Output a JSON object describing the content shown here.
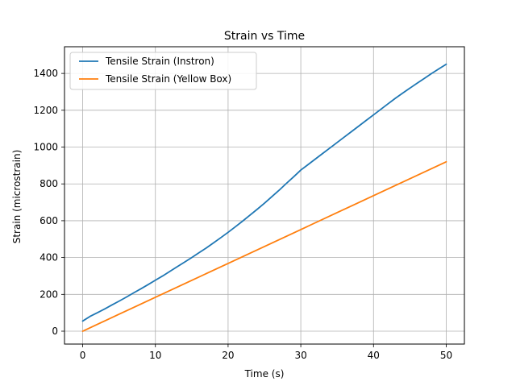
{
  "chart_data": {
    "type": "line",
    "title": "Strain vs Time",
    "xlabel": "Time (s)",
    "ylabel": "Strain (microstrain)",
    "xlim": [
      -2.5,
      52.5
    ],
    "ylim": [
      -70,
      1545
    ],
    "xticks": [
      0,
      10,
      20,
      30,
      40,
      50
    ],
    "yticks": [
      0,
      200,
      400,
      600,
      800,
      1000,
      1200,
      1400
    ],
    "grid": true,
    "legend_position": "top-left",
    "series": [
      {
        "name": "Tensile Strain (Instron)",
        "color": "#1f77b4",
        "x": [
          0,
          1,
          2,
          3,
          4,
          5,
          6,
          7,
          8,
          9,
          10,
          11,
          12,
          13,
          14,
          15,
          16,
          17,
          18,
          19,
          20,
          21,
          22,
          23,
          24,
          25,
          26,
          27,
          28,
          29,
          30,
          31,
          32,
          33,
          34,
          35,
          36,
          37,
          38,
          39,
          40,
          41,
          42,
          43,
          44,
          45,
          46,
          47,
          48,
          49,
          50
        ],
        "y": [
          55,
          80,
          100,
          120,
          142,
          163,
          185,
          208,
          230,
          253,
          277,
          300,
          325,
          350,
          375,
          400,
          426,
          452,
          480,
          508,
          537,
          567,
          598,
          630,
          662,
          695,
          730,
          765,
          802,
          838,
          875,
          905,
          935,
          965,
          995,
          1025,
          1055,
          1085,
          1115,
          1145,
          1175,
          1205,
          1235,
          1265,
          1293,
          1320,
          1347,
          1373,
          1400,
          1425,
          1450
        ]
      },
      {
        "name": "Tensile Strain (Yellow Box)",
        "color": "#ff7f0e",
        "x": [
          0,
          5,
          10,
          15,
          20,
          25,
          30,
          35,
          40,
          45,
          50
        ],
        "y": [
          0,
          92,
          184,
          276,
          368,
          460,
          552,
          644,
          736,
          828,
          920
        ]
      }
    ]
  }
}
